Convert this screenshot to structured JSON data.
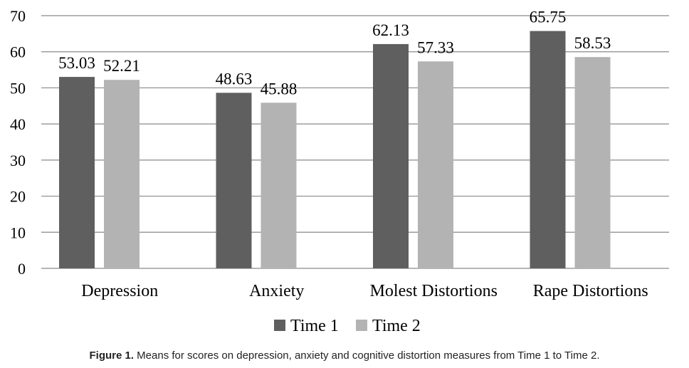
{
  "chart_data": {
    "type": "bar",
    "categories": [
      "Depression",
      "Anxiety",
      "Molest Distortions",
      "Rape Distortions"
    ],
    "series": [
      {
        "name": "Time 1",
        "values": [
          53.03,
          48.63,
          62.13,
          65.75
        ],
        "labels": [
          "53.03",
          "48.63",
          "62.13",
          "65.75"
        ],
        "color": "#5f5f5f"
      },
      {
        "name": "Time 2",
        "values": [
          52.21,
          45.88,
          57.33,
          58.53
        ],
        "labels": [
          "52.21",
          "45.88",
          "57.33",
          "58.53"
        ],
        "color": "#b3b3b3"
      }
    ],
    "yticks": [
      "0",
      "10",
      "20",
      "30",
      "40",
      "50",
      "60",
      "70"
    ],
    "ylim": [
      0,
      70
    ],
    "grid": true,
    "legend": "bottom"
  },
  "caption": {
    "label": "Figure 1.",
    "text": " Means for scores on depression, anxiety and cognitive distortion measures from Time 1 to Time 2."
  }
}
